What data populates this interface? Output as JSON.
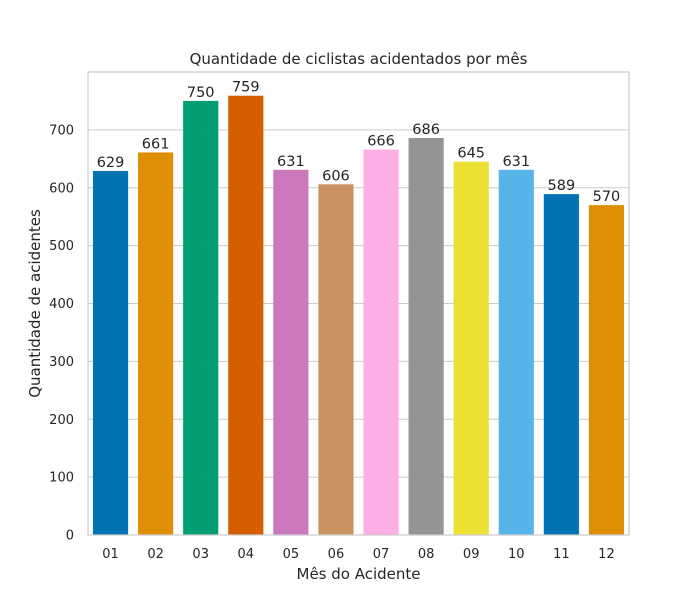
{
  "chart_data": {
    "type": "bar",
    "title": "Quantidade de ciclistas acidentados por mês",
    "xlabel": "Mês do Acidente",
    "ylabel": "Quantidade de acidentes",
    "categories": [
      "01",
      "02",
      "03",
      "04",
      "05",
      "06",
      "07",
      "08",
      "09",
      "10",
      "11",
      "12"
    ],
    "values": [
      629,
      661,
      750,
      759,
      631,
      606,
      666,
      686,
      645,
      631,
      589,
      570
    ],
    "data_labels": [
      "629",
      "661",
      "750",
      "759",
      "631",
      "606",
      "666",
      "686",
      "645",
      "631",
      "589",
      "570"
    ],
    "ylim": [
      0,
      800
    ],
    "yticks": [
      0,
      100,
      200,
      300,
      400,
      500,
      600,
      700
    ],
    "ytick_labels": [
      "0",
      "100",
      "200",
      "300",
      "400",
      "500",
      "600",
      "700"
    ],
    "grid": "horizontal",
    "legend": "none",
    "colors": [
      "#0173b2",
      "#de8f05",
      "#029e73",
      "#d55e00",
      "#cc78bc",
      "#ca9161",
      "#fbafe4",
      "#949494",
      "#ece133",
      "#56b4e9",
      "#0173b2",
      "#de8f05"
    ]
  }
}
